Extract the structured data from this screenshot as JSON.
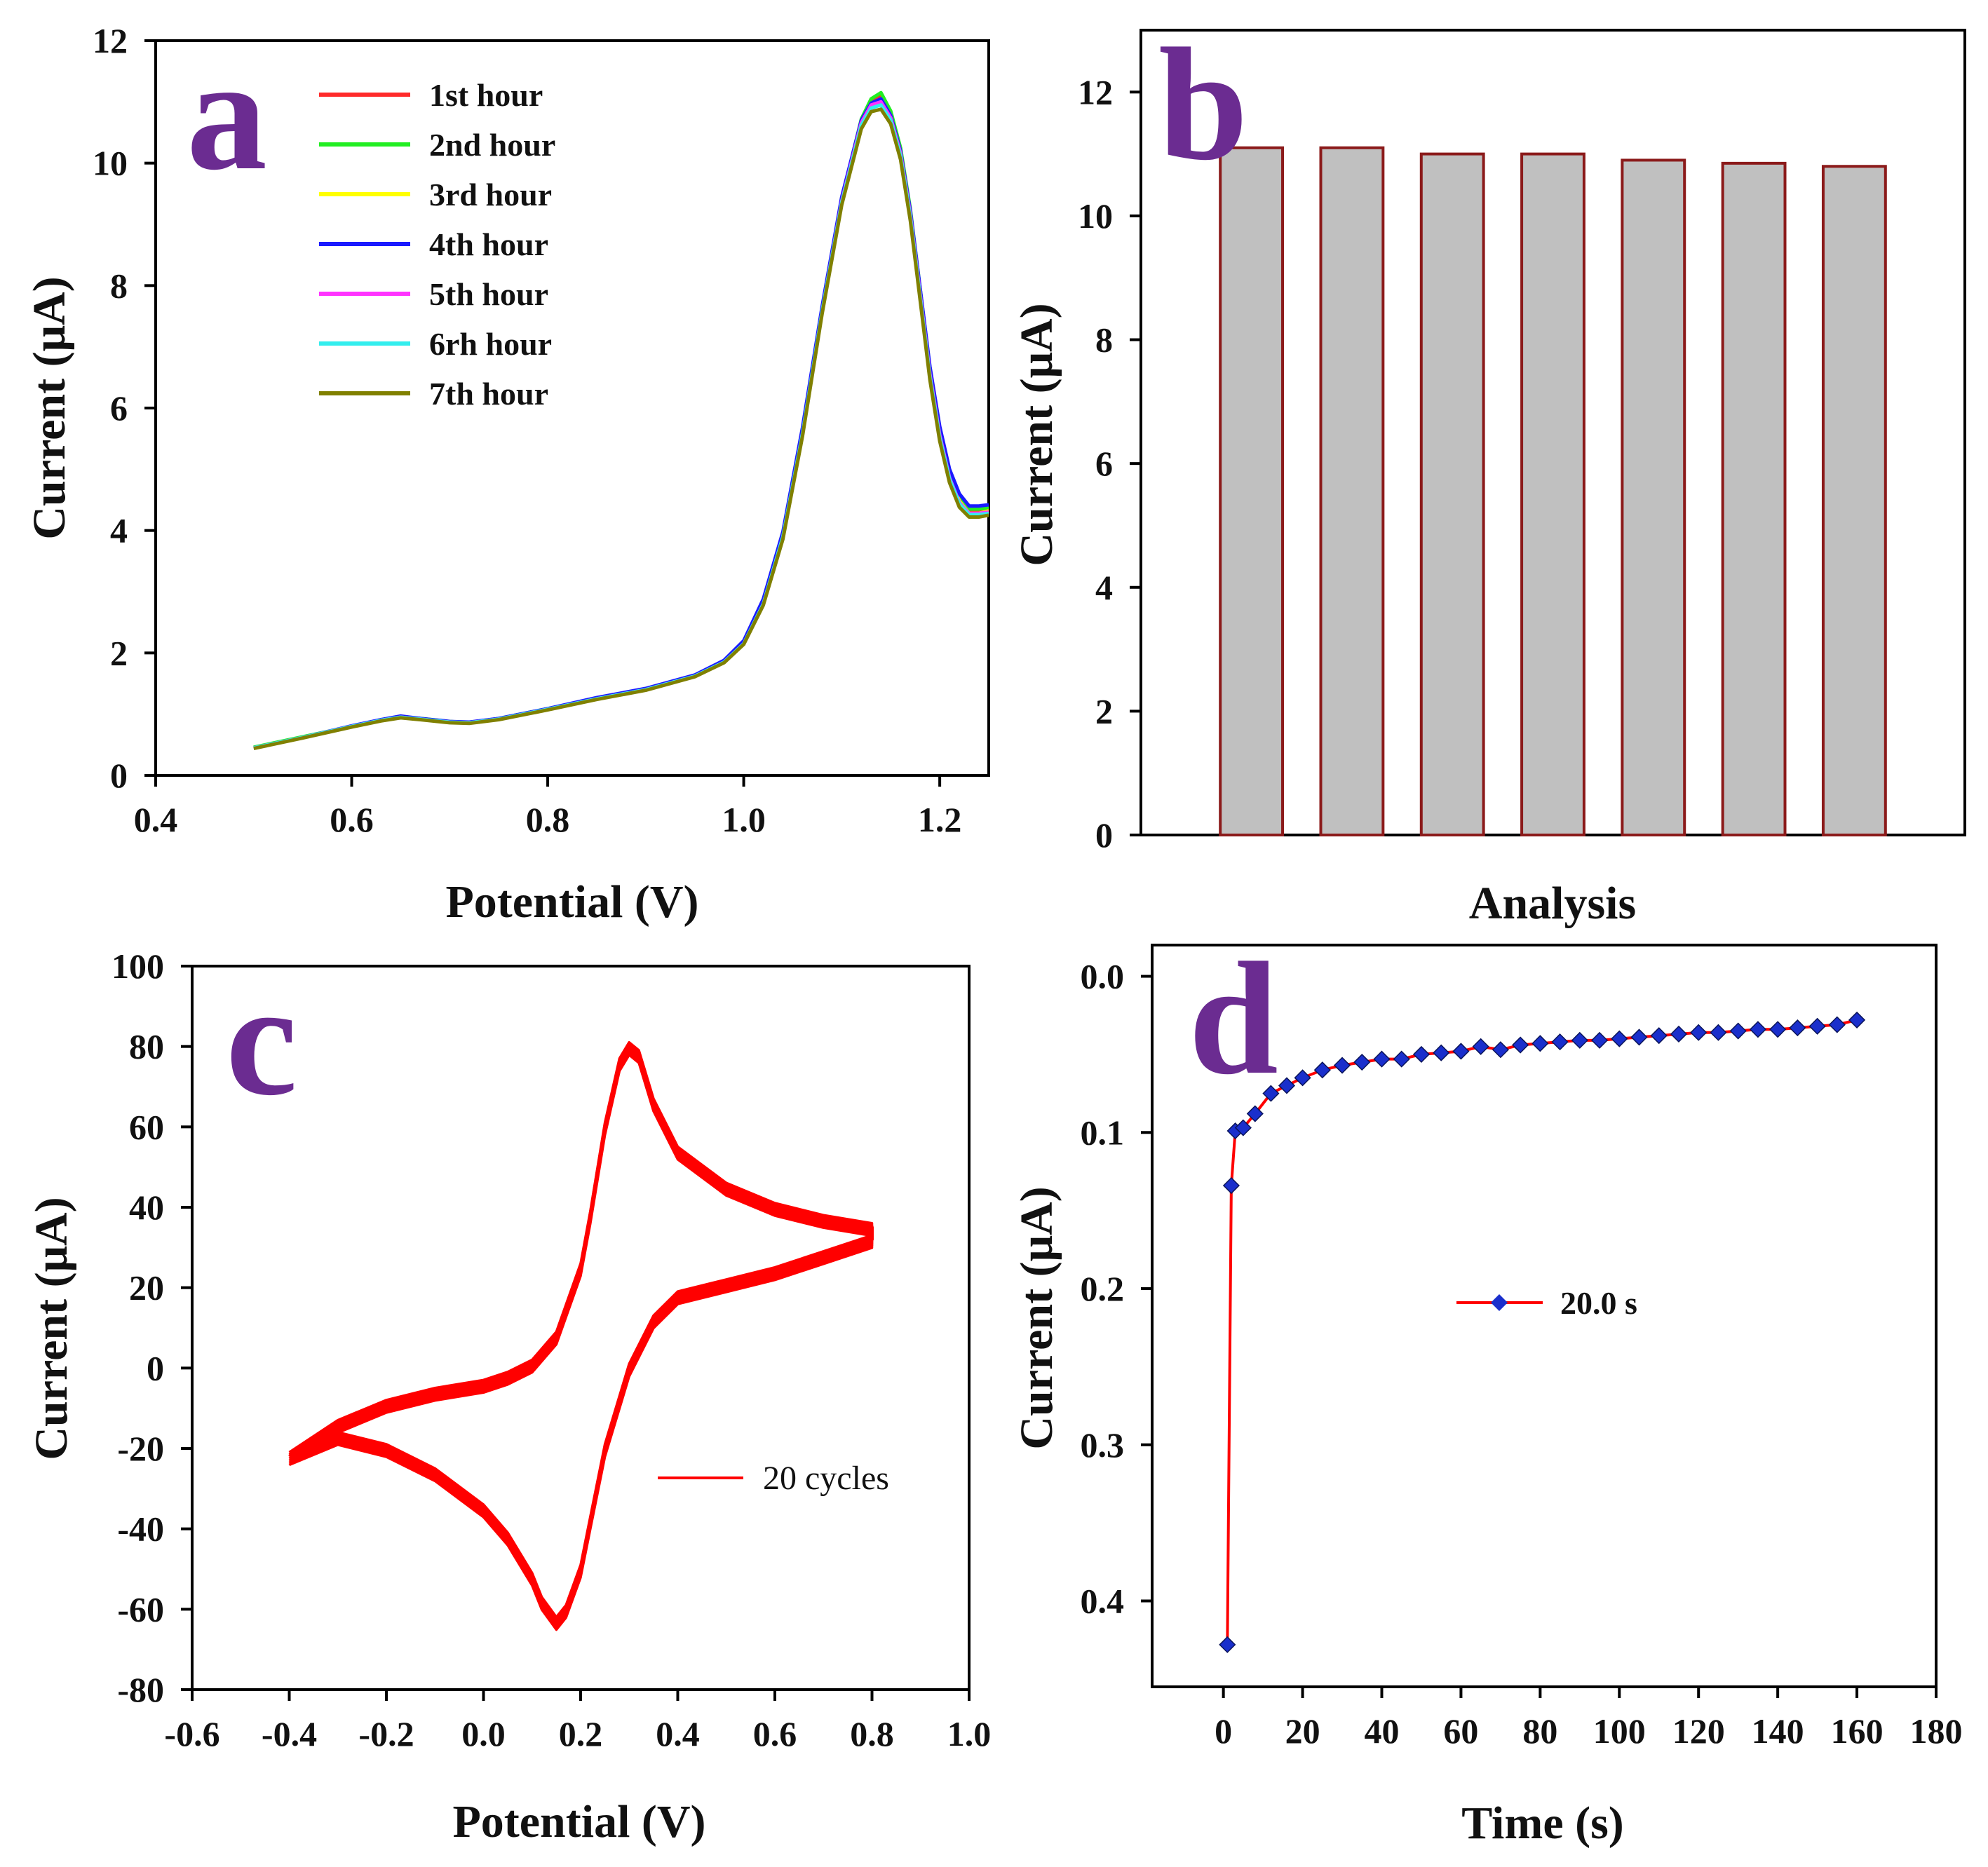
{
  "chart_data": [
    {
      "panel": "a",
      "type": "line",
      "xlabel": "Potential (V)",
      "ylabel": "Current (μA)",
      "xlim": [
        0.4,
        1.25
      ],
      "ylim": [
        0,
        12
      ],
      "xticks": [
        0.4,
        0.6,
        0.8,
        1.0,
        1.2
      ],
      "xtick_labels": [
        "0.4",
        "0.6",
        "0.8",
        "1.0",
        "1.2"
      ],
      "yticks": [
        0,
        2,
        4,
        6,
        8,
        10,
        12
      ],
      "ytick_labels": [
        "0",
        "2",
        "4",
        "6",
        "8",
        "10",
        "12"
      ],
      "legend_position": "top-left",
      "x": [
        0.5,
        0.55,
        0.6,
        0.63,
        0.65,
        0.67,
        0.7,
        0.72,
        0.75,
        0.8,
        0.85,
        0.9,
        0.95,
        0.98,
        1.0,
        1.02,
        1.04,
        1.06,
        1.08,
        1.1,
        1.12,
        1.13,
        1.14,
        1.15,
        1.16,
        1.17,
        1.18,
        1.19,
        1.2,
        1.21,
        1.22,
        1.23,
        1.24,
        1.25
      ],
      "series": [
        {
          "name": "1st hour",
          "color": "#ff2a2a",
          "values": [
            0.45,
            0.62,
            0.8,
            0.9,
            0.95,
            0.92,
            0.87,
            0.86,
            0.92,
            1.08,
            1.25,
            1.4,
            1.62,
            1.85,
            2.15,
            2.8,
            3.9,
            5.6,
            7.6,
            9.4,
            10.7,
            11.0,
            11.1,
            10.8,
            10.2,
            9.2,
            7.9,
            6.6,
            5.6,
            4.9,
            4.5,
            4.3,
            4.3,
            4.35
          ]
        },
        {
          "name": "2nd hour",
          "color": "#22ee22",
          "values": [
            0.46,
            0.63,
            0.8,
            0.91,
            0.96,
            0.93,
            0.88,
            0.86,
            0.93,
            1.09,
            1.26,
            1.41,
            1.63,
            1.86,
            2.16,
            2.82,
            3.92,
            5.62,
            7.62,
            9.42,
            10.72,
            11.05,
            11.15,
            10.85,
            10.25,
            9.25,
            7.95,
            6.65,
            5.65,
            4.95,
            4.55,
            4.35,
            4.35,
            4.38
          ]
        },
        {
          "name": "3rd hour",
          "color": "#ffff00",
          "values": [
            0.45,
            0.62,
            0.8,
            0.9,
            0.95,
            0.92,
            0.87,
            0.86,
            0.92,
            1.08,
            1.25,
            1.4,
            1.62,
            1.85,
            2.15,
            2.8,
            3.9,
            5.6,
            7.6,
            9.4,
            10.68,
            10.98,
            11.05,
            10.78,
            10.18,
            9.18,
            7.88,
            6.58,
            5.58,
            4.88,
            4.48,
            4.28,
            4.28,
            4.32
          ]
        },
        {
          "name": "4th hour",
          "color": "#1a1aff",
          "values": [
            0.45,
            0.62,
            0.81,
            0.91,
            0.97,
            0.93,
            0.88,
            0.87,
            0.93,
            1.09,
            1.27,
            1.42,
            1.64,
            1.88,
            2.2,
            2.88,
            3.98,
            5.68,
            7.66,
            9.45,
            10.7,
            10.98,
            11.05,
            10.78,
            10.2,
            9.22,
            7.95,
            6.68,
            5.7,
            5.0,
            4.6,
            4.4,
            4.4,
            4.42
          ]
        },
        {
          "name": "5th hour",
          "color": "#ff33ff",
          "values": [
            0.45,
            0.62,
            0.8,
            0.9,
            0.95,
            0.92,
            0.87,
            0.86,
            0.92,
            1.08,
            1.25,
            1.4,
            1.62,
            1.85,
            2.15,
            2.8,
            3.9,
            5.58,
            7.58,
            9.38,
            10.66,
            10.95,
            11.0,
            10.74,
            10.16,
            9.16,
            7.86,
            6.56,
            5.56,
            4.86,
            4.46,
            4.28,
            4.28,
            4.3
          ]
        },
        {
          "name": "6rh hour",
          "color": "#33eeee",
          "values": [
            0.45,
            0.62,
            0.8,
            0.9,
            0.95,
            0.92,
            0.87,
            0.86,
            0.92,
            1.08,
            1.25,
            1.4,
            1.62,
            1.85,
            2.15,
            2.8,
            3.9,
            5.58,
            7.58,
            9.36,
            10.62,
            10.9,
            10.95,
            10.7,
            10.12,
            9.12,
            7.82,
            6.52,
            5.52,
            4.84,
            4.44,
            4.26,
            4.26,
            4.28
          ]
        },
        {
          "name": "7th hour",
          "color": "#808000",
          "values": [
            0.44,
            0.61,
            0.79,
            0.89,
            0.94,
            0.91,
            0.86,
            0.85,
            0.91,
            1.07,
            1.24,
            1.39,
            1.61,
            1.84,
            2.14,
            2.78,
            3.86,
            5.54,
            7.54,
            9.32,
            10.56,
            10.84,
            10.88,
            10.64,
            10.06,
            9.06,
            7.76,
            6.46,
            5.46,
            4.78,
            4.38,
            4.22,
            4.22,
            4.25
          ]
        }
      ]
    },
    {
      "panel": "b",
      "type": "bar",
      "xlabel": "Analysis",
      "ylabel": "Current (μA)",
      "ylim": [
        0,
        13
      ],
      "yticks": [
        0,
        2,
        4,
        6,
        8,
        10,
        12
      ],
      "ytick_labels": [
        "0",
        "2",
        "4",
        "6",
        "8",
        "10",
        "12"
      ],
      "bar_fill": "#c0c0c0",
      "bar_edge": "#8b1a1a",
      "values": [
        11.1,
        11.1,
        11.0,
        11.0,
        10.9,
        10.85,
        10.8
      ]
    },
    {
      "panel": "c",
      "type": "line",
      "xlabel": "Potential (V)",
      "ylabel": "Current (μA)",
      "xlim": [
        -0.6,
        1.0
      ],
      "ylim": [
        -80,
        100
      ],
      "xticks": [
        -0.6,
        -0.4,
        -0.2,
        0.0,
        0.2,
        0.4,
        0.6,
        0.8,
        1.0
      ],
      "xtick_labels": [
        "-0.6",
        "-0.4",
        "-0.2",
        "0.0",
        "0.2",
        "0.4",
        "0.6",
        "0.8",
        "1.0"
      ],
      "yticks": [
        -80,
        -60,
        -40,
        -20,
        0,
        20,
        40,
        60,
        80,
        100
      ],
      "ytick_labels": [
        "-80",
        "-60",
        "-40",
        "-20",
        "0",
        "20",
        "40",
        "60",
        "80",
        "100"
      ],
      "legend_position": "center-right",
      "series": [
        {
          "name": "20 cycles",
          "color": "#ff0000",
          "forward_x": [
            -0.4,
            -0.3,
            -0.2,
            -0.1,
            0.0,
            0.05,
            0.1,
            0.15,
            0.2,
            0.22,
            0.25,
            0.28,
            0.3,
            0.32,
            0.35,
            0.4,
            0.5,
            0.6,
            0.7,
            0.8
          ],
          "forward_y": [
            -22,
            -14,
            -9,
            -6,
            -4,
            -2,
            1,
            8,
            25,
            38,
            60,
            76,
            80,
            78,
            66,
            54,
            45,
            40,
            37,
            35
          ],
          "reverse_x": [
            0.8,
            0.7,
            0.6,
            0.5,
            0.4,
            0.35,
            0.3,
            0.25,
            0.22,
            0.2,
            0.17,
            0.15,
            0.12,
            0.1,
            0.05,
            0.0,
            -0.1,
            -0.2,
            -0.3,
            -0.4
          ],
          "reverse_y": [
            32,
            28,
            24,
            21,
            18,
            12,
            0,
            -20,
            -38,
            -50,
            -60,
            -63,
            -58,
            -52,
            -42,
            -35,
            -26,
            -20,
            -17,
            -22
          ]
        }
      ]
    },
    {
      "panel": "d",
      "type": "line",
      "xlabel": "Time (s)",
      "ylabel": "Current (μA)",
      "xlim": [
        -18,
        180
      ],
      "ylim": [
        -0.02,
        0.455
      ],
      "y_inverted": true,
      "xticks": [
        0,
        20,
        40,
        60,
        80,
        100,
        120,
        140,
        160,
        180
      ],
      "xtick_labels": [
        "0",
        "20",
        "40",
        "60",
        "80",
        "100",
        "120",
        "140",
        "160",
        "180"
      ],
      "yticks": [
        0.0,
        0.1,
        0.2,
        0.3,
        0.4
      ],
      "ytick_labels": [
        "0.0",
        "0.1",
        "0.2",
        "0.3",
        "0.4"
      ],
      "legend_position": "center",
      "series": [
        {
          "name": "20.0 s",
          "line_color": "#ff0000",
          "marker_color": "#1a2fcc",
          "x": [
            1,
            2,
            3,
            5,
            8,
            12,
            16,
            20,
            25,
            30,
            35,
            40,
            45,
            50,
            55,
            60,
            65,
            70,
            75,
            80,
            85,
            90,
            95,
            100,
            105,
            110,
            115,
            120,
            125,
            130,
            135,
            140,
            145,
            150,
            155,
            160
          ],
          "y": [
            0.428,
            0.134,
            0.099,
            0.097,
            0.088,
            0.075,
            0.07,
            0.065,
            0.06,
            0.057,
            0.055,
            0.053,
            0.053,
            0.05,
            0.049,
            0.048,
            0.045,
            0.047,
            0.044,
            0.043,
            0.042,
            0.041,
            0.041,
            0.04,
            0.039,
            0.038,
            0.037,
            0.036,
            0.036,
            0.035,
            0.034,
            0.034,
            0.033,
            0.032,
            0.031,
            0.028
          ]
        }
      ]
    }
  ],
  "labels": {
    "panel_a": "a",
    "panel_b": "b",
    "panel_c": "c",
    "panel_d": "d"
  }
}
